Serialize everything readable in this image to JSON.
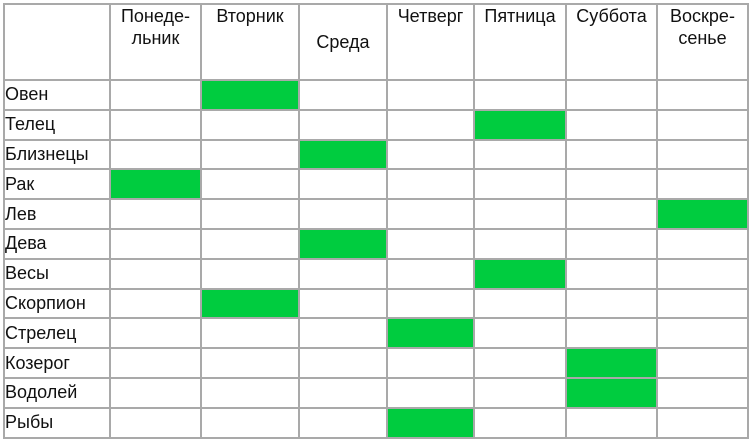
{
  "days": [
    {
      "line1": "Понеде-",
      "line2": "льник"
    },
    {
      "line1": "Вторник",
      "line2": ""
    },
    {
      "line1": "Среда",
      "line2": ""
    },
    {
      "line1": "Четверг",
      "line2": ""
    },
    {
      "line1": "Пятница",
      "line2": ""
    },
    {
      "line1": "Суббота",
      "line2": ""
    },
    {
      "line1": "Воскре-",
      "line2": "сенье"
    }
  ],
  "signs": [
    {
      "name": "Овен",
      "day_index": 1
    },
    {
      "name": "Телец",
      "day_index": 4
    },
    {
      "name": "Близнецы",
      "day_index": 2
    },
    {
      "name": "Рак",
      "day_index": 0
    },
    {
      "name": "Лев",
      "day_index": 6
    },
    {
      "name": "Дева",
      "day_index": 2
    },
    {
      "name": "Весы",
      "day_index": 4
    },
    {
      "name": "Скорпион",
      "day_index": 1
    },
    {
      "name": "Стрелец",
      "day_index": 3
    },
    {
      "name": "Козерог",
      "day_index": 5
    },
    {
      "name": "Водолей",
      "day_index": 5
    },
    {
      "name": "Рыбы",
      "day_index": 3
    }
  ],
  "colors": {
    "highlight": "#00cc3f",
    "grid": "#a9a9a9"
  }
}
